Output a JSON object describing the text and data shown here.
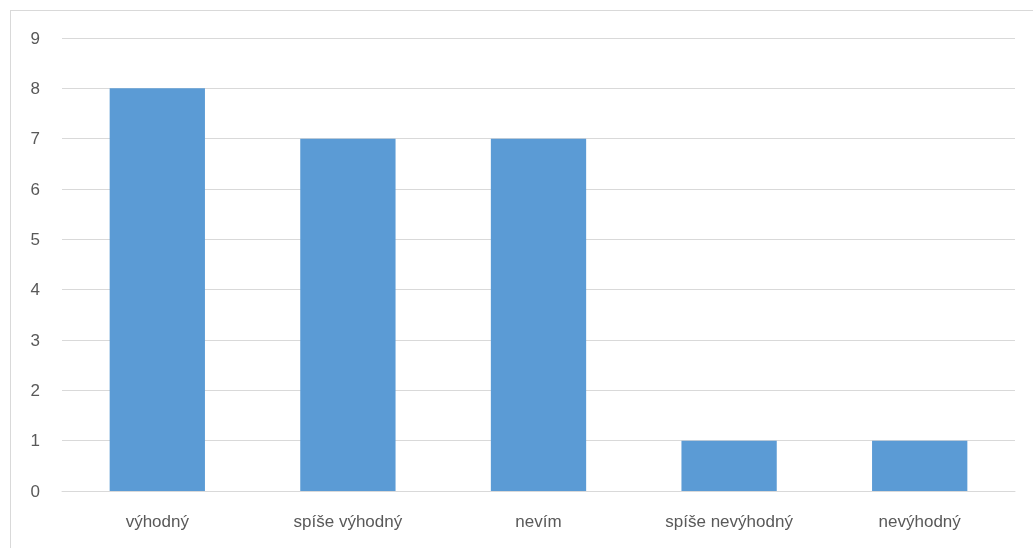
{
  "chart_data": {
    "type": "bar",
    "categories": [
      "výhodný",
      "spíše výhodný",
      "nevím",
      "spíše nevýhodný",
      "nevýhodný"
    ],
    "values": [
      8,
      7,
      7,
      1,
      1
    ],
    "color": "#5b9bd5",
    "ylim": [
      0,
      9
    ],
    "yticks": [
      0,
      1,
      2,
      3,
      4,
      5,
      6,
      7,
      8,
      9
    ],
    "grid": "y"
  }
}
